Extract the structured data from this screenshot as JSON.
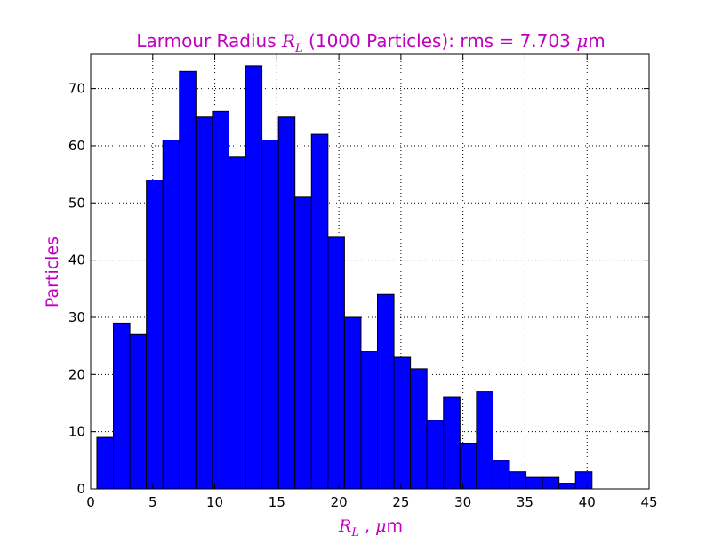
{
  "chart_data": {
    "type": "bar",
    "title": {
      "prefix": "Larmour Radius ",
      "math_main": "R",
      "math_sub": "L",
      "suffix": "  (1000 Particles): rms =  7.703 ",
      "unit_math": "μ",
      "unit_text": "m"
    },
    "xlabel": {
      "math_main": "R",
      "math_sub": "L",
      "text": " , ",
      "unit_math": "μ",
      "unit_text": "m"
    },
    "ylabel": "Particles",
    "xlim": [
      0,
      45
    ],
    "ylim": [
      0,
      76
    ],
    "xticks": [
      0,
      5,
      10,
      15,
      20,
      25,
      30,
      35,
      40,
      45
    ],
    "yticks": [
      0,
      10,
      20,
      30,
      40,
      50,
      60,
      70
    ],
    "grid": true,
    "bin_edges": [
      0.5,
      1.83,
      3.16,
      4.49,
      5.82,
      7.15,
      8.48,
      9.81,
      11.14,
      12.47,
      13.8,
      15.13,
      16.46,
      17.79,
      19.12,
      20.45,
      21.78,
      23.11,
      24.44,
      25.77,
      27.1,
      28.43,
      29.76,
      31.09,
      32.42,
      33.75,
      35.08,
      36.41,
      37.74,
      39.07,
      40.4
    ],
    "values": [
      9,
      29,
      27,
      54,
      61,
      73,
      65,
      66,
      58,
      74,
      61,
      65,
      51,
      62,
      44,
      30,
      24,
      34,
      23,
      21,
      12,
      16,
      8,
      17,
      5,
      3,
      2,
      2,
      1,
      3
    ]
  },
  "colors": {
    "bar_fill": "#0000ff",
    "bar_edge": "#000000",
    "title": "#bf00bf",
    "axis_label": "#bf00bf",
    "grid": "#000000"
  }
}
